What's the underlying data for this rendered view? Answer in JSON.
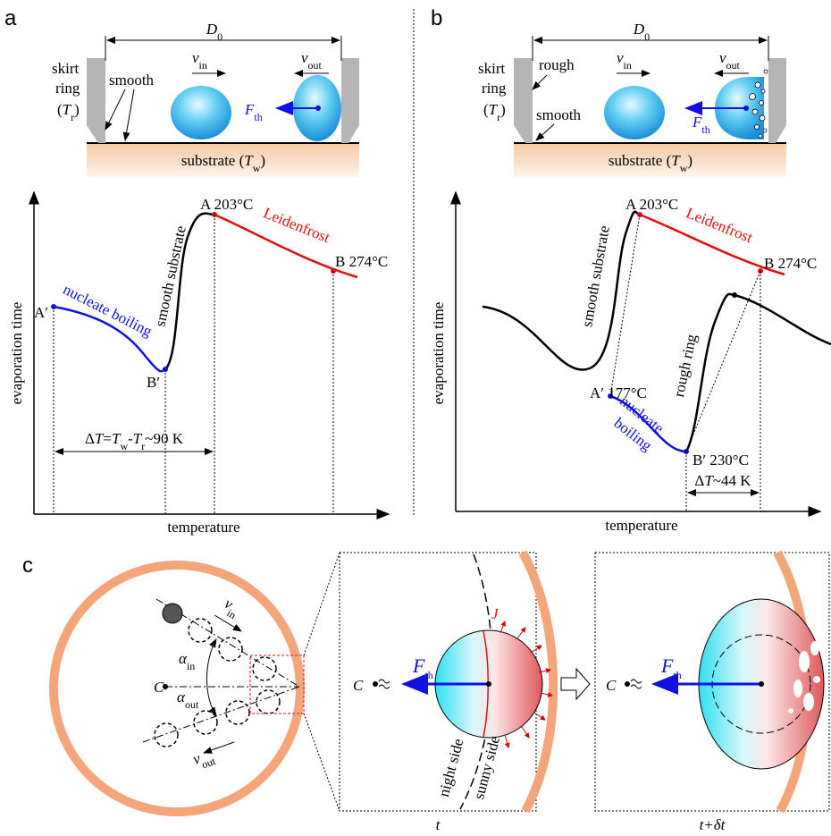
{
  "panel_a": {
    "label": "a",
    "d0": {
      "symbol": "D",
      "sub": "0"
    },
    "v_in": {
      "symbol": "v",
      "sub": "in"
    },
    "v_out": {
      "symbol": "v",
      "sub": "out"
    },
    "ring": {
      "line1": "skirt",
      "line2": "ring",
      "open": "(",
      "symbol": "T",
      "sub": "r",
      "close": ")"
    },
    "smooth": "smooth",
    "force": {
      "symbol": "F",
      "sub": "th"
    },
    "substrate": {
      "text": "substrate (",
      "symbol": "T",
      "sub": "w",
      "close": ")"
    },
    "plot": {
      "y_axis": "evaporation time",
      "x_axis": "temperature",
      "a": "A 203°C",
      "b": "B 274°C",
      "a_prime": "A′",
      "b_prime": "B′",
      "nucleate": "nucleate boiling",
      "smooth_curve": "smooth substrate",
      "leidenfrost": "Leidenfrost",
      "delta": {
        "p1": "Δ",
        "t1": "T",
        "p2": "=",
        "t2": "T",
        "s2": "w",
        "p3": "-",
        "t3": "T",
        "s3": "r",
        "p4": "~90 K"
      }
    }
  },
  "panel_b": {
    "label": "b",
    "d0": {
      "symbol": "D",
      "sub": "0"
    },
    "v_in": {
      "symbol": "v",
      "sub": "in"
    },
    "v_out": {
      "symbol": "v",
      "sub": "out"
    },
    "ring": {
      "line1": "skirt",
      "line2": "ring",
      "open": "(",
      "symbol": "T",
      "sub": "r",
      "close": ")"
    },
    "rough": "rough",
    "smooth": "smooth",
    "force": {
      "symbol": "F",
      "sub": "th"
    },
    "substrate": {
      "text": "substrate (",
      "symbol": "T",
      "sub": "w",
      "close": ")"
    },
    "plot": {
      "y_axis": "evaporation time",
      "x_axis": "temperature",
      "a": "A 203°C",
      "b": "B 274°C",
      "a_prime": "A′ 177°C",
      "b_prime": "B′ 230°C",
      "nucleate": [
        "nucleate",
        "boiling"
      ],
      "smooth_curve": "smooth substrate",
      "rough_ring": "rough ring",
      "leidenfrost": "Leidenfrost",
      "delta": {
        "p1": "Δ",
        "t1": "T",
        "p4": "~44 K"
      }
    }
  },
  "panel_c": {
    "label": "c",
    "center": "C",
    "v_in": {
      "symbol": "v",
      "sub": "in"
    },
    "v_out": {
      "symbol": "v",
      "sub": "out"
    },
    "alpha_in": {
      "symbol": "α",
      "sub": "in"
    },
    "alpha_out": {
      "symbol": "α",
      "sub": "out"
    },
    "j": "J",
    "force": {
      "symbol": "F",
      "sub": "th"
    },
    "night": "night side",
    "sunny": "sunny side",
    "t": "t",
    "t_dt": "t+δt"
  }
}
